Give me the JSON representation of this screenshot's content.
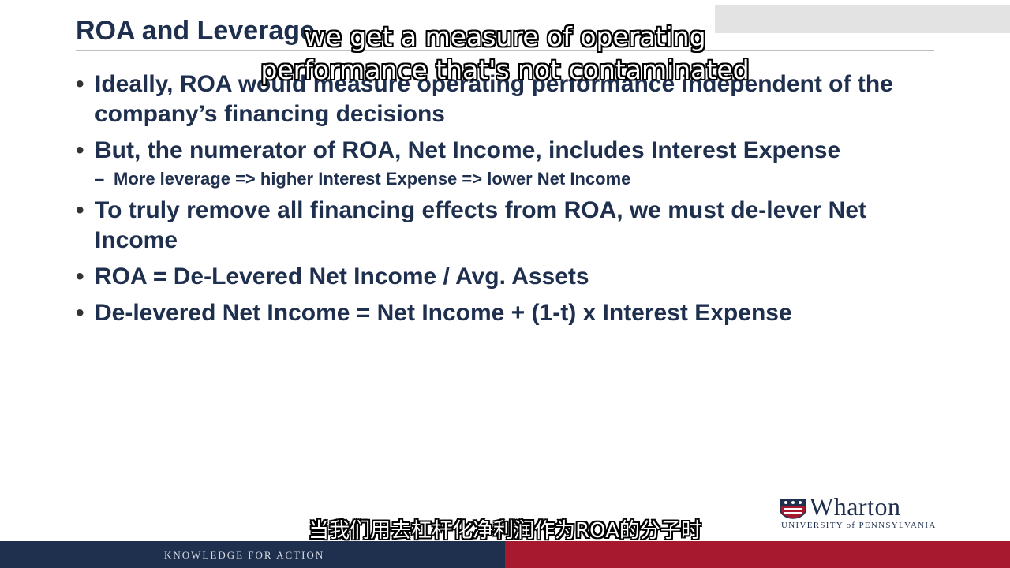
{
  "slide": {
    "title": "ROA and Leverage",
    "bullets": [
      "Ideally, ROA would measure operating performance independent of the company’s financing decisions",
      "But, the numerator of ROA, Net Income, includes Interest Expense",
      "To truly remove all financing effects from ROA, we must de-lever Net Income",
      "ROA = De-Levered Net Income / Avg. Assets",
      "De-levered Net Income = Net Income + (1-t) x Interest Expense"
    ],
    "sub_bullet": "More leverage => higher Interest Expense => lower Net Income",
    "bullet_marker": "•",
    "sub_marker": "–"
  },
  "logo": {
    "name": "Wharton",
    "university": "UNIVERSITY of PENNSYLVANIA",
    "crest_icon": "penn-crest-icon"
  },
  "footer": {
    "tagline": "KNOWLEDGE FOR ACTION"
  },
  "subtitles": {
    "english_line1": "we get a measure of operating",
    "english_line2": "performance that's not contaminated",
    "chinese": "当我们用去杠杆化净利润作为ROA的分子时"
  },
  "colors": {
    "navy": "#1f2f4e",
    "crimson": "#a6192e"
  }
}
